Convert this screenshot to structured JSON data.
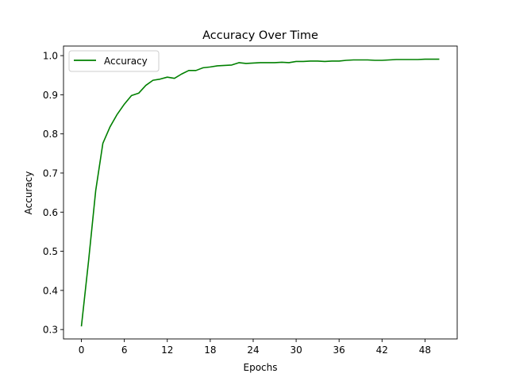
{
  "chart_data": {
    "type": "line",
    "title": "Accuracy Over Time",
    "xlabel": "Epochs",
    "ylabel": "Accuracy",
    "xlim": [
      -2.5,
      52.5
    ],
    "ylim": [
      0.276,
      1.0245
    ],
    "x_ticks": [
      0,
      6,
      12,
      18,
      24,
      30,
      36,
      42,
      48
    ],
    "y_ticks": [
      0.3,
      0.4,
      0.5,
      0.6,
      0.7,
      0.8,
      0.9,
      1.0
    ],
    "y_tick_labels": [
      "0.3",
      "0.4",
      "0.5",
      "0.6",
      "0.7",
      "0.8",
      "0.9",
      "1.0"
    ],
    "grid": false,
    "legend_position": "top-left",
    "series": [
      {
        "name": "Accuracy",
        "color": "#008000",
        "x": [
          0,
          1,
          2,
          3,
          4,
          5,
          6,
          7,
          8,
          9,
          10,
          11,
          12,
          13,
          14,
          15,
          16,
          17,
          18,
          19,
          20,
          21,
          22,
          23,
          24,
          25,
          26,
          27,
          28,
          29,
          30,
          31,
          32,
          33,
          34,
          35,
          36,
          37,
          38,
          39,
          40,
          41,
          42,
          43,
          44,
          45,
          46,
          47,
          48,
          49,
          50
        ],
        "values": [
          0.308,
          0.475,
          0.655,
          0.776,
          0.818,
          0.85,
          0.876,
          0.898,
          0.904,
          0.924,
          0.937,
          0.94,
          0.945,
          0.942,
          0.953,
          0.962,
          0.962,
          0.969,
          0.971,
          0.974,
          0.975,
          0.976,
          0.982,
          0.98,
          0.981,
          0.982,
          0.982,
          0.982,
          0.983,
          0.982,
          0.985,
          0.985,
          0.986,
          0.986,
          0.985,
          0.986,
          0.986,
          0.988,
          0.989,
          0.989,
          0.989,
          0.988,
          0.988,
          0.989,
          0.99,
          0.99,
          0.99,
          0.99,
          0.991,
          0.991,
          0.991
        ]
      }
    ]
  }
}
